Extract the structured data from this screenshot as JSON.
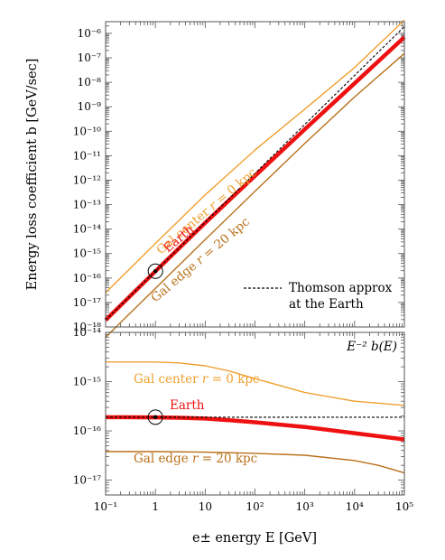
{
  "chart_data": [
    {
      "type": "line",
      "panel": "top",
      "ylabel": "Energy loss coefficient b [GeV/sec]",
      "xscale": "log",
      "yscale": "log",
      "xlim": [
        0.1,
        100000
      ],
      "ylim": [
        1e-18,
        3e-06
      ],
      "ytick_labels": [
        "10⁻¹⁸",
        "10⁻¹⁷",
        "10⁻¹⁶",
        "10⁻¹⁵",
        "10⁻¹⁴",
        "10⁻¹³",
        "10⁻¹²",
        "10⁻¹¹",
        "10⁻¹⁰",
        "10⁻⁹",
        "10⁻⁸",
        "10⁻⁷",
        "10⁻⁶"
      ],
      "grid": false,
      "series": [
        {
          "name": "Gal center r = 0 kpc",
          "color": "#f0a030",
          "x": [
            0.1,
            1,
            10,
            100,
            1000,
            10000,
            100000
          ],
          "y": [
            2.5e-17,
            2.6e-15,
            2.5e-13,
            1.7e-11,
            8e-10,
            4e-08,
            3.5e-06
          ]
        },
        {
          "name": "Earth",
          "color": "#ee1111",
          "x": [
            0.1,
            1,
            10,
            100,
            1000,
            10000,
            100000
          ],
          "y": [
            1.9e-18,
            1.9e-16,
            1.8e-14,
            1.5e-12,
            1.2e-10,
            9e-09,
            7e-07
          ]
        },
        {
          "name": "Gal edge r = 20 kpc",
          "color": "#b8701a",
          "x": [
            0.1,
            1,
            10,
            100,
            1000,
            10000,
            100000
          ],
          "y": [
            3.8e-19,
            3.8e-17,
            3.7e-15,
            3.5e-13,
            3.2e-11,
            2.5e-09,
            1.5e-07
          ]
        },
        {
          "name": "Thomson approx at the Earth",
          "color": "#000000",
          "dashed": true,
          "x": [
            0.1,
            100000
          ],
          "y": [
            1.9e-18,
            1.9e-06
          ]
        }
      ],
      "marker": {
        "x": 1,
        "y": 1.9e-16
      },
      "annotations": {
        "center_prefix": "Gal center ",
        "center_var": "r",
        "center_suffix": " = 0 kpc",
        "earth": "Earth",
        "edge_prefix": "Gal edge ",
        "edge_var": "r",
        "edge_suffix": " = 20 kpc"
      },
      "legend_line1": "Thomson approx",
      "legend_line2": "at the Earth",
      "legend_position": "bottom-right"
    },
    {
      "type": "line",
      "panel": "bottom",
      "title": "E⁻² b(E)",
      "xlabel": "e± energy E [GeV]",
      "xscale": "log",
      "yscale": "log",
      "xlim": [
        0.1,
        100000
      ],
      "ylim": [
        5e-18,
        1e-14
      ],
      "xtick_labels": [
        "10⁻¹",
        "1",
        "10",
        "10²",
        "10³",
        "10⁴",
        "10⁵"
      ],
      "ytick_labels": [
        "10⁻¹⁷",
        "10⁻¹⁶",
        "10⁻¹⁵",
        "10⁻¹⁴"
      ],
      "grid": false,
      "series": [
        {
          "name": "Gal center r = 0 kpc",
          "color": "#f0a030",
          "x": [
            0.1,
            1,
            3,
            10,
            30,
            100,
            1000,
            10000,
            100000
          ],
          "y": [
            2.5e-15,
            2.5e-15,
            2.4e-15,
            2.1e-15,
            1.65e-15,
            1.15e-15,
            6e-16,
            4e-16,
            3.3e-16
          ]
        },
        {
          "name": "Earth",
          "color": "#ee1111",
          "x": [
            0.1,
            1,
            3,
            10,
            30,
            100,
            1000,
            10000,
            100000
          ],
          "y": [
            1.9e-16,
            1.88e-16,
            1.85e-16,
            1.78e-16,
            1.65e-16,
            1.5e-16,
            1.2e-16,
            9e-17,
            6.7e-17
          ]
        },
        {
          "name": "Gal edge r = 20 kpc",
          "color": "#b8701a",
          "x": [
            0.1,
            1,
            10,
            100,
            1000,
            10000,
            30000,
            100000
          ],
          "y": [
            3.8e-17,
            3.8e-17,
            3.7e-17,
            3.5e-17,
            3.2e-17,
            2.5e-17,
            2e-17,
            1.4e-17
          ]
        },
        {
          "name": "Thomson approx at the Earth",
          "color": "#000000",
          "dashed": true,
          "x": [
            0.1,
            100000
          ],
          "y": [
            1.9e-16,
            1.9e-16
          ]
        }
      ],
      "marker": {
        "x": 1,
        "y": 1.9e-16
      },
      "annotations": {
        "center_prefix": "Gal center ",
        "center_var": "r",
        "center_suffix": " = 0 kpc",
        "earth": "Earth",
        "edge_prefix": "Gal edge ",
        "edge_var": "r",
        "edge_suffix": " = 20 kpc"
      }
    }
  ]
}
